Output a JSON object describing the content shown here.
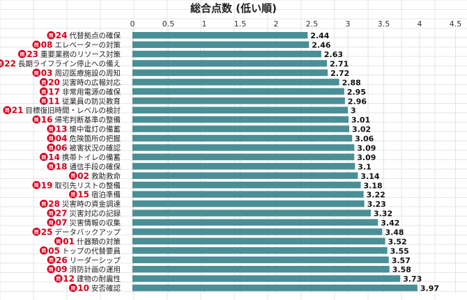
{
  "chart_data": {
    "type": "bar",
    "orientation": "horizontal",
    "title": "総合点数 (低い順)",
    "xlabel": "",
    "ylabel": "",
    "xlim": [
      0,
      4.5
    ],
    "x_ticks": [
      "0",
      "0.5",
      "1",
      "1.5",
      "2",
      "2.5",
      "3",
      "3.5",
      "4",
      "4.5"
    ],
    "grid": true,
    "bar_color": "#4a8f96",
    "badge_color": "#d6001c",
    "badge_text": "問",
    "categories": [
      {
        "num": "24",
        "label": "代替拠点の確保"
      },
      {
        "num": "08",
        "label": "エレベーターの対策"
      },
      {
        "num": "23",
        "label": "重要業務のリソース対策"
      },
      {
        "num": "22",
        "label": "長期ライフライン停止への備え"
      },
      {
        "num": "03",
        "label": "周辺医療施設の周知"
      },
      {
        "num": "20",
        "label": "災害時の広報対応"
      },
      {
        "num": "17",
        "label": "非常用電源の確保"
      },
      {
        "num": "11",
        "label": "従業員の防災教育"
      },
      {
        "num": "21",
        "label": "目標復旧時間・レベルの検討"
      },
      {
        "num": "16",
        "label": "帰宅判断基準の整備"
      },
      {
        "num": "13",
        "label": "懐中電灯の備蓄"
      },
      {
        "num": "04",
        "label": "危険箇所の把握"
      },
      {
        "num": "06",
        "label": "被害状況の確認"
      },
      {
        "num": "14",
        "label": "携帯トイレの備蓄"
      },
      {
        "num": "18",
        "label": "通信手段の確保"
      },
      {
        "num": "02",
        "label": "救助救命"
      },
      {
        "num": "19",
        "label": "取引先リストの整備"
      },
      {
        "num": "15",
        "label": "宿泊準備"
      },
      {
        "num": "28",
        "label": "災害時の資金調達"
      },
      {
        "num": "27",
        "label": "災害対応の記録"
      },
      {
        "num": "07",
        "label": "災害情報の収集"
      },
      {
        "num": "25",
        "label": "データバックアップ"
      },
      {
        "num": "01",
        "label": "什器類の対策"
      },
      {
        "num": "05",
        "label": "トップの代替要員"
      },
      {
        "num": "26",
        "label": "リーダーシップ"
      },
      {
        "num": "09",
        "label": "消防計画の運用"
      },
      {
        "num": "12",
        "label": "建物の耐震性"
      },
      {
        "num": "10",
        "label": "安否確認"
      }
    ],
    "values": [
      2.44,
      2.46,
      2.63,
      2.71,
      2.72,
      2.88,
      2.95,
      2.96,
      3,
      3.01,
      3.02,
      3.06,
      3.09,
      3.09,
      3.1,
      3.14,
      3.18,
      3.22,
      3.23,
      3.32,
      3.42,
      3.48,
      3.52,
      3.55,
      3.57,
      3.58,
      3.73,
      3.97
    ]
  }
}
